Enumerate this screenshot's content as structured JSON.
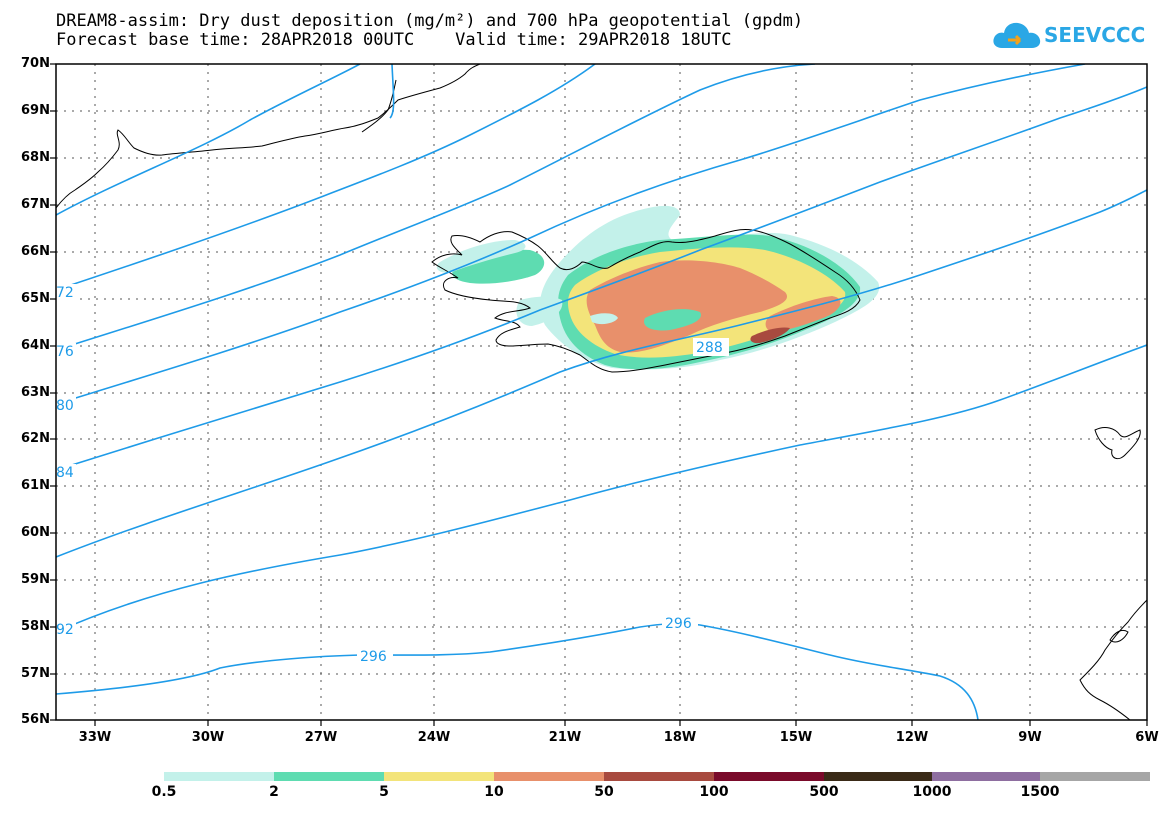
{
  "title": {
    "line1": "DREAM8-assim: Dry dust deposition (mg/m²) and 700 hPa geopotential (gpdm)",
    "line2": "Forecast base time: 28APR2018 00UTC    Valid time: 29APR2018 18UTC"
  },
  "logo": {
    "text": "SEEVCCC",
    "icon": "cloud-logo-icon",
    "color": "#2aa7e5"
  },
  "map": {
    "lat_range": [
      56,
      70
    ],
    "lon_range": [
      -34.5,
      -6
    ],
    "lat_labels": [
      "70N",
      "69N",
      "68N",
      "67N",
      "66N",
      "65N",
      "64N",
      "63N",
      "62N",
      "61N",
      "60N",
      "59N",
      "58N",
      "57N",
      "56N"
    ],
    "lon_labels": [
      "33W",
      "30W",
      "27W",
      "24W",
      "21W",
      "18W",
      "15W",
      "12W",
      "9W",
      "6W"
    ],
    "contour_color": "#1e9be8",
    "contour_labels": [
      {
        "text": "72",
        "lon": -34.5,
        "lat": 65.2
      },
      {
        "text": "76",
        "lon": -34.5,
        "lat": 63.9
      },
      {
        "text": "80",
        "lon": -34.5,
        "lat": 62.7
      },
      {
        "text": "84",
        "lon": -34.5,
        "lat": 61.3
      },
      {
        "text": "92",
        "lon": -34.5,
        "lat": 58.0
      },
      {
        "text": "288",
        "lon": -16.9,
        "lat": 64.0
      },
      {
        "text": "296",
        "lon": -25.1,
        "lat": 57.4
      },
      {
        "text": "296",
        "lon": -18.0,
        "lat": 58.1
      }
    ]
  },
  "legend": {
    "colors": [
      "#c3f1ea",
      "#5edcb1",
      "#f3e47a",
      "#e8906b",
      "#a84a3f",
      "#7a0a2a",
      "#3a2a17",
      "#8e6ea0",
      "#a6a6a6"
    ],
    "labels": [
      "0.5",
      "2",
      "5",
      "10",
      "50",
      "100",
      "500",
      "1000",
      "1500"
    ]
  }
}
